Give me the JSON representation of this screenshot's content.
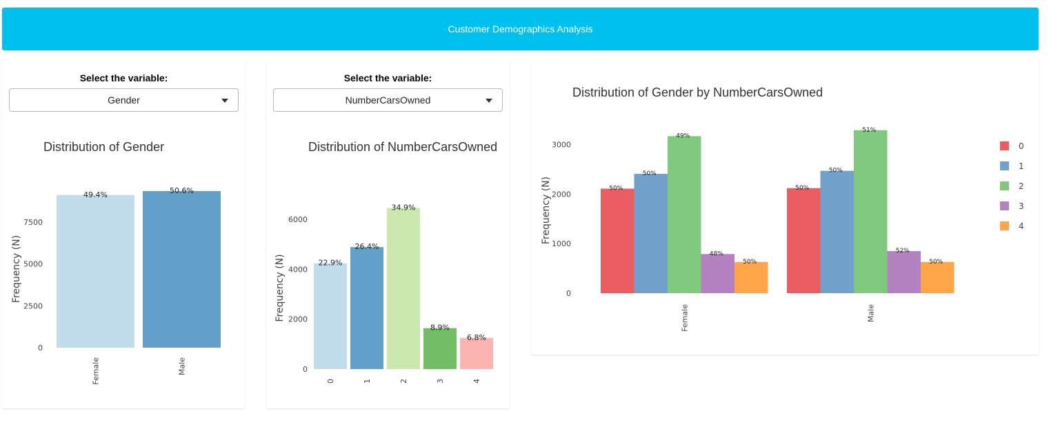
{
  "header": {
    "title": "Customer Demographics Analysis"
  },
  "selectors": [
    {
      "label": "Select the variable:",
      "value": "Gender"
    },
    {
      "label": "Select the variable:",
      "value": "NumberCarsOwned"
    }
  ],
  "chart_data": [
    {
      "type": "bar",
      "title": "Distribution of Gender",
      "ylabel": "Frequency (N)",
      "categories": [
        "Female",
        "Male"
      ],
      "values": [
        9120,
        9360
      ],
      "labels": [
        "49.4%",
        "50.6%"
      ],
      "colors": [
        "#c1dcea",
        "#62a0c9"
      ],
      "yticks": [
        0,
        2500,
        5000,
        7500
      ],
      "ylim": [
        0,
        9400
      ],
      "grid": false
    },
    {
      "type": "bar",
      "title": "Distribution of NumberCarsOwned",
      "ylabel": "Frequency (N)",
      "categories": [
        "0",
        "1",
        "2",
        "3",
        "4"
      ],
      "values": [
        4240,
        4890,
        6460,
        1640,
        1250
      ],
      "labels": [
        "22.9%",
        "26.4%",
        "34.9%",
        "8.9%",
        "6.8%"
      ],
      "colors": [
        "#c1dcea",
        "#62a0c9",
        "#cbe9ae",
        "#72bd66",
        "#fbb4b0"
      ],
      "yticks": [
        0,
        2000,
        4000,
        6000
      ],
      "ylim": [
        0,
        6500
      ],
      "grid": false
    },
    {
      "type": "bar",
      "title": "Distribution of Gender by NumberCarsOwned",
      "ylabel": "Frequency (N)",
      "categories": [
        "Female",
        "Male"
      ],
      "series": [
        {
          "name": "0",
          "color": "#ea5e63",
          "values": [
            2110,
            2120
          ],
          "labels": [
            "50%",
            "50%"
          ]
        },
        {
          "name": "1",
          "color": "#72a2cb",
          "values": [
            2410,
            2470
          ],
          "labels": [
            "50%",
            "50%"
          ]
        },
        {
          "name": "2",
          "color": "#80c87d",
          "values": [
            3170,
            3290
          ],
          "labels": [
            "49%",
            "51%"
          ]
        },
        {
          "name": "3",
          "color": "#b582c1",
          "values": [
            790,
            850
          ],
          "labels": [
            "48%",
            "52%"
          ]
        },
        {
          "name": "4",
          "color": "#fea449",
          "values": [
            630,
            630
          ],
          "labels": [
            "50%",
            "50%"
          ]
        }
      ],
      "yticks": [
        0,
        1000,
        2000,
        3000
      ],
      "ylim": [
        0,
        3300
      ],
      "legend": "right",
      "grid": false
    }
  ]
}
